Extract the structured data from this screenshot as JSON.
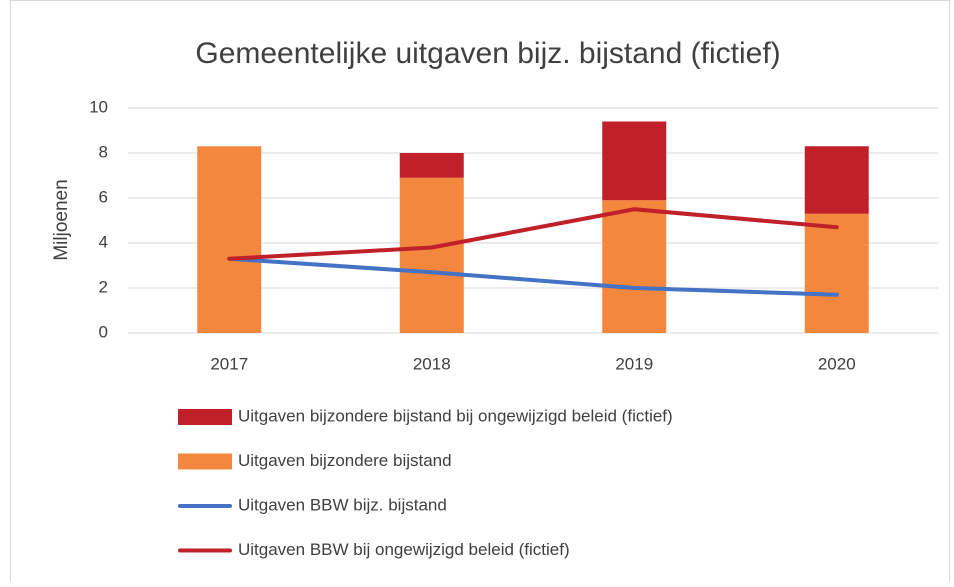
{
  "chart_data": {
    "type": "bar",
    "title": "Gemeentelijke uitgaven bijz. bijstand (fictief)",
    "y_label": "Miljoenen",
    "categories": [
      "2017",
      "2018",
      "2019",
      "2020"
    ],
    "series": [
      {
        "name": "Uitgaven bijzondere bijstand bij ongewijzigd beleid (fictief)",
        "type": "bar",
        "color": "#c0202a",
        "values": [
          0,
          1.1,
          3.5,
          3.0
        ]
      },
      {
        "name": "Uitgaven bijzondere bijstand",
        "type": "bar",
        "color": "#f4873e",
        "values": [
          8.3,
          6.9,
          5.9,
          5.3
        ]
      },
      {
        "name": "Uitgaven BBW bijz. bijstand",
        "type": "line",
        "color": "#4472c4",
        "values": [
          3.3,
          2.7,
          2.0,
          1.7
        ]
      },
      {
        "name": "Uitgaven BBW bij ongewijzigd beleid (fictief)",
        "type": "line",
        "color": "#c0202a",
        "values": [
          3.3,
          3.8,
          5.5,
          4.7
        ]
      }
    ],
    "ylim": [
      0,
      10
    ],
    "yticks": [
      0,
      2,
      4,
      6,
      8,
      10
    ],
    "grid": true
  }
}
